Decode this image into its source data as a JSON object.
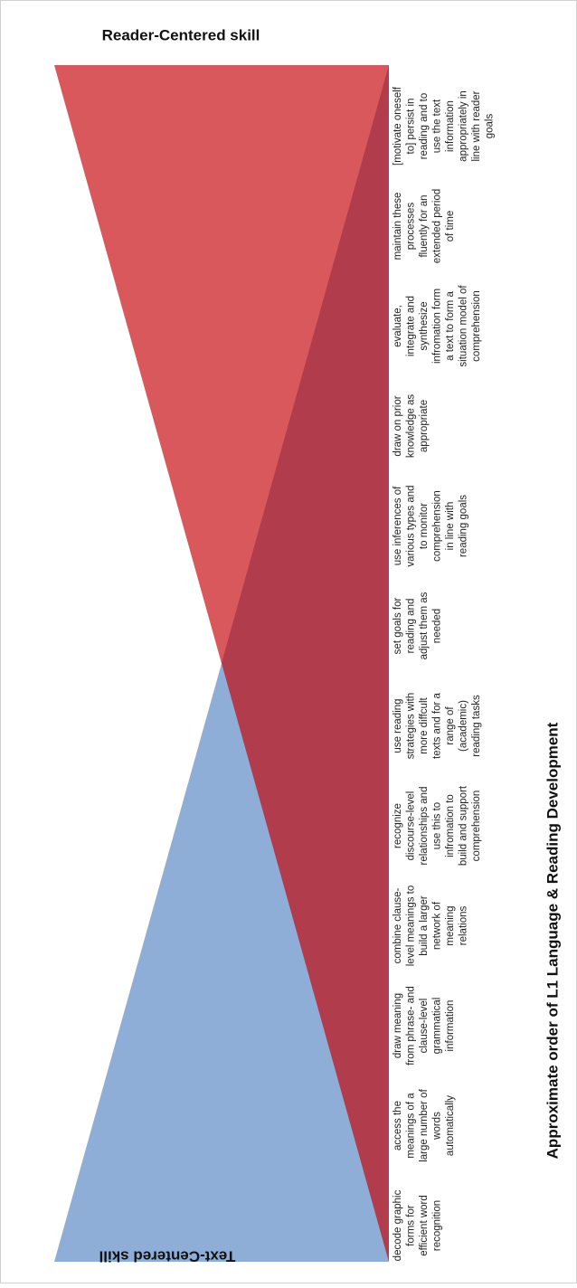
{
  "diagram": {
    "title": "Approximate order of L1 Language & Reading Development",
    "top_label": "Reader-Centered skill",
    "bottom_label": "Text-Centered skill",
    "skills": [
      [
        "decode graphic",
        "forms for",
        "efficient word",
        "recognition"
      ],
      [
        "access the",
        "meanings of a",
        "large number of",
        "words",
        "automatically"
      ],
      [
        "draw meaning",
        "from phrase- and",
        "clause-level",
        "grammatical",
        "information"
      ],
      [
        "combine clause-",
        "level meanings to",
        "build a larger",
        "network of",
        "meaning",
        "relations"
      ],
      [
        "recognize",
        "discourse-level",
        "relationships and",
        "use this to",
        "infromation to",
        "build and support",
        "comprehension"
      ],
      [
        "use reading",
        "strategies with",
        "more diffcult",
        "texts and for a",
        "range of",
        "(academic)",
        "reading tasks"
      ],
      [
        "set goals for",
        "reading and",
        "adjust them as",
        "needed"
      ],
      [
        "use inferences of",
        "various types and",
        "to monitor",
        "comprehension",
        "in line with",
        "reading goals"
      ],
      [
        "draw on prior",
        "knowledge as",
        "appropriate"
      ],
      [
        "evaluate,",
        "integrate and",
        "synthesize",
        "infromation form",
        "a text to form a",
        "situation model of",
        "comprehension"
      ],
      [
        "maintain these",
        "processes",
        "fluently for an",
        "extended period",
        "of time"
      ],
      [
        "[motivate oneself",
        "to] persist in",
        "reading and to",
        "use the text",
        "information",
        "appropriately in",
        "line with reader",
        "goals"
      ]
    ]
  }
}
